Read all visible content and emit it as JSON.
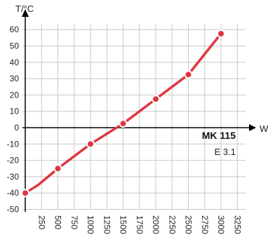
{
  "chart_data": {
    "type": "line",
    "title": "",
    "xlabel": "W",
    "ylabel": "T/°C",
    "x_ticks": [
      "250",
      "500",
      "750",
      "1000",
      "1250",
      "1500",
      "1750",
      "2000",
      "2250",
      "2500",
      "2750",
      "3000",
      "3250"
    ],
    "y_ticks": [
      "60",
      "50",
      "40",
      "30",
      "20",
      "10",
      "0",
      "-10",
      "-20",
      "-30",
      "-40",
      "-50"
    ],
    "xlim": [
      0,
      3400
    ],
    "ylim": [
      -50,
      65
    ],
    "grid": true,
    "series": [
      {
        "x": [
          0,
          200,
          500,
          1000,
          1500,
          2000,
          2500,
          3000
        ],
        "y": [
          -40,
          -35,
          -25,
          -10,
          2.5,
          17.5,
          32.5,
          57.5
        ]
      }
    ],
    "markers_x": [
      0,
      500,
      1000,
      1500,
      2000,
      2500,
      3000
    ],
    "annotations": {
      "title": "MK 115",
      "subtitle": "E 3.1"
    },
    "colors": {
      "line": "#e0363f",
      "marker_fill": "#ffffff",
      "grid": "#c8c8c8",
      "axis": "#000000"
    }
  }
}
